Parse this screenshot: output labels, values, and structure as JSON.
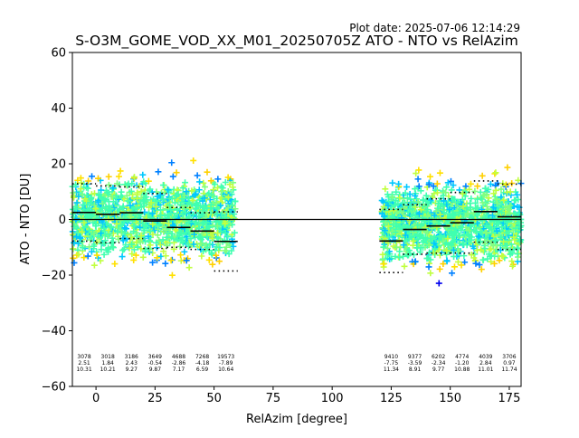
{
  "plot_date": "Plot date: 2025-07-06 12:14:29",
  "chart_data": {
    "type": "scatter",
    "title": "S-O3M_GOME_VOD_XX_M01_20250705Z ATO - NTO vs RelAzim",
    "xlabel": "RelAzim [degree]",
    "ylabel": "ATO - NTO [DU]",
    "xlim": [
      -10,
      180
    ],
    "ylim": [
      -60,
      60
    ],
    "xticks": [
      0,
      25,
      50,
      75,
      100,
      125,
      150,
      175
    ],
    "yticks": [
      -60,
      -40,
      -20,
      0,
      20,
      40,
      60
    ],
    "grid": false,
    "zero_line": 0,
    "point_colors": [
      "#0000ee",
      "#0080ff",
      "#00c8ff",
      "#40ffb0",
      "#80ff80",
      "#c0ff40",
      "#ffe000",
      "#ffd000"
    ],
    "scatter_clusters": [
      {
        "x_range": [
          -10,
          59
        ],
        "y_center": 0.5,
        "y_spread": 22
      },
      {
        "x_range": [
          121,
          180
        ],
        "y_center": -1.5,
        "y_spread": 22
      }
    ],
    "bins": [
      {
        "x_start": -10,
        "x_end": 0,
        "mean": 2.51,
        "std": 10.31,
        "count": "3078",
        "mean_label": "2.51",
        "std_label": "10.31"
      },
      {
        "x_start": 0,
        "x_end": 10,
        "mean": 1.84,
        "std": 10.21,
        "count": "3018",
        "mean_label": "1.84",
        "std_label": "10.21"
      },
      {
        "x_start": 10,
        "x_end": 20,
        "mean": 2.43,
        "std": 9.27,
        "count": "3186",
        "mean_label": "2.43",
        "std_label": "9.27"
      },
      {
        "x_start": 20,
        "x_end": 30,
        "mean": -0.54,
        "std": 9.87,
        "count": "3649",
        "mean_label": "-0.54",
        "std_label": "9.87"
      },
      {
        "x_start": 30,
        "x_end": 40,
        "mean": -2.86,
        "std": 7.17,
        "count": "4688",
        "mean_label": "-2.86",
        "std_label": "7.17"
      },
      {
        "x_start": 40,
        "x_end": 50,
        "mean": -4.18,
        "std": 6.59,
        "count": "7268",
        "mean_label": "-4.18",
        "std_label": "6.59"
      },
      {
        "x_start": 50,
        "x_end": 60,
        "mean": -7.89,
        "std": 10.64,
        "count": "19573",
        "mean_label": "-7.89",
        "std_label": "10.64"
      },
      {
        "x_start": 120,
        "x_end": 130,
        "mean": -7.75,
        "std": 11.34,
        "count": "9410",
        "mean_label": "-7.75",
        "std_label": "11.34"
      },
      {
        "x_start": 130,
        "x_end": 140,
        "mean": -3.59,
        "std": 8.91,
        "count": "9377",
        "mean_label": "-3.59",
        "std_label": "8.91"
      },
      {
        "x_start": 140,
        "x_end": 150,
        "mean": -2.34,
        "std": 9.77,
        "count": "6202",
        "mean_label": "-2.34",
        "std_label": "9.77"
      },
      {
        "x_start": 150,
        "x_end": 160,
        "mean": -1.2,
        "std": 10.88,
        "count": "4774",
        "mean_label": "-1.20",
        "std_label": "10.88"
      },
      {
        "x_start": 160,
        "x_end": 170,
        "mean": 2.84,
        "std": 11.01,
        "count": "4039",
        "mean_label": "2.84",
        "std_label": "11.01"
      },
      {
        "x_start": 170,
        "x_end": 180,
        "mean": 0.97,
        "std": 11.74,
        "count": "3706",
        "mean_label": "0.97",
        "std_label": "11.74"
      }
    ]
  }
}
